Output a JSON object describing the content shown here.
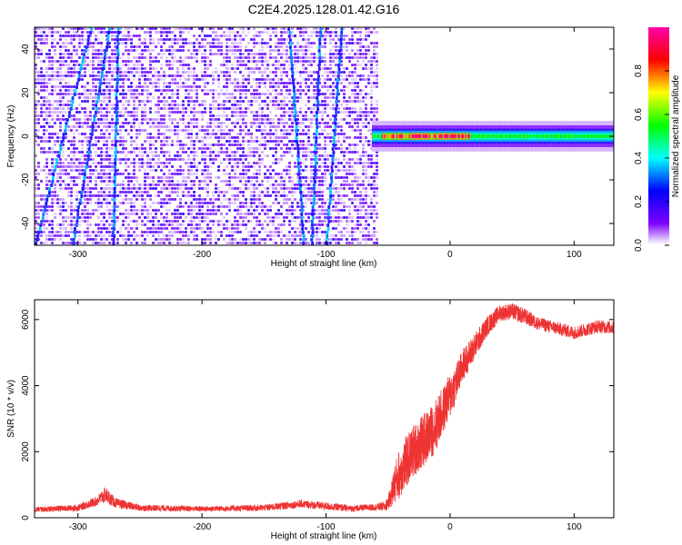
{
  "figure": {
    "title": "C2E4.2025.128.01.42.G16"
  },
  "chart_data": [
    {
      "type": "heatmap",
      "xlabel": "Height of straight line (km)",
      "ylabel": "Frequency (Hz)",
      "xlim": [
        -335,
        132
      ],
      "ylim": [
        -50,
        50
      ],
      "x_ticks": [
        -300,
        -200,
        -100,
        0,
        100
      ],
      "y_ticks": [
        -40,
        -20,
        0,
        20,
        40
      ],
      "data_extent_x": [
        -335,
        -58
      ],
      "signal_band": {
        "x_start": -63,
        "x_end": 132,
        "frequency_hz": 0,
        "peak_x_range": [
          -55,
          15
        ],
        "peak_amplitude": 0.95,
        "tail_amplitude": 0.5
      },
      "streaks": [
        {
          "x_at_minus50": -335,
          "x_at_plus50": -290
        },
        {
          "x_at_minus50": -305,
          "x_at_plus50": -275
        },
        {
          "x_at_minus50": -272,
          "x_at_plus50": -268
        },
        {
          "x_at_minus50": -118,
          "x_at_plus50": -130
        },
        {
          "x_at_minus50": -112,
          "x_at_plus50": -105
        },
        {
          "x_at_minus50": -100,
          "x_at_plus50": -88
        }
      ],
      "colorbar": {
        "label": "Normalized spectral amplitude",
        "range": [
          0,
          1
        ],
        "ticks": [
          "0.0",
          "0.2",
          "0.4",
          "0.6",
          "0.8"
        ],
        "colors": [
          "#ffffff",
          "#7f00ff",
          "#0000ff",
          "#00ffff",
          "#00ff00",
          "#ffff00",
          "#ff0000",
          "#ff00aa"
        ]
      }
    },
    {
      "type": "line",
      "xlabel": "Height of straight line (km)",
      "ylabel": "SNR (10 * v/v)",
      "xlim": [
        -335,
        132
      ],
      "ylim": [
        0,
        6600
      ],
      "x_ticks": [
        -300,
        -200,
        -100,
        0,
        100
      ],
      "y_ticks": [
        0,
        2000,
        4000,
        6000
      ],
      "color": "#ee3333",
      "series": [
        {
          "x": [
            -335,
            -300,
            -285,
            -278,
            -270,
            -250,
            -200,
            -150,
            -120,
            -100,
            -80,
            -60,
            -52,
            -48,
            -45,
            -40,
            -35,
            -30,
            -25,
            -20,
            -15,
            -10,
            -5,
            0,
            5,
            10,
            20,
            30,
            40,
            50,
            60,
            70,
            80,
            90,
            100,
            110,
            120,
            132
          ],
          "y": [
            250,
            300,
            500,
            700,
            450,
            300,
            270,
            300,
            420,
            350,
            280,
            320,
            350,
            600,
            1000,
            1400,
            1700,
            2000,
            2200,
            2400,
            2600,
            2900,
            3300,
            3700,
            4100,
            4600,
            5200,
            5800,
            6200,
            6250,
            6100,
            5900,
            5800,
            5700,
            5600,
            5700,
            5800,
            5750
          ],
          "jitter": [
            80,
            100,
            150,
            250,
            150,
            100,
            80,
            100,
            120,
            120,
            100,
            100,
            150,
            300,
            600,
            800,
            800,
            800,
            800,
            800,
            800,
            800,
            700,
            700,
            600,
            500,
            400,
            300,
            250,
            250,
            250,
            200,
            200,
            200,
            200,
            200,
            200,
            200
          ]
        }
      ]
    }
  ]
}
